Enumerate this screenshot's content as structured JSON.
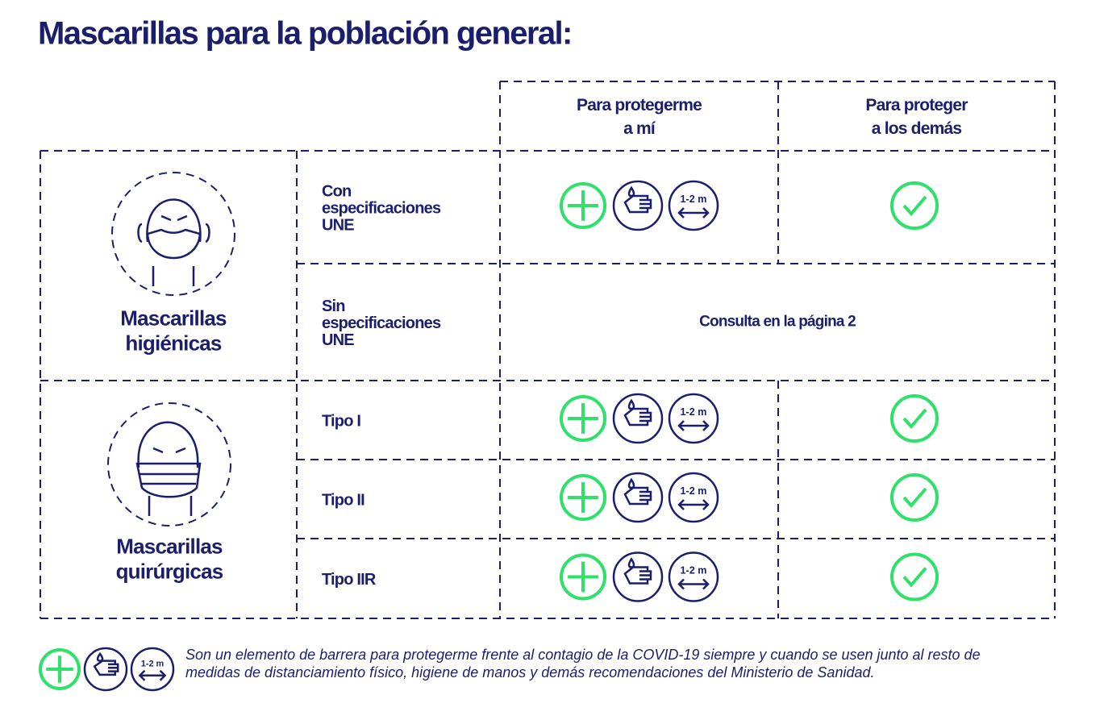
{
  "title": "Mascarillas para la población general:",
  "headers": [
    [
      "Para protegerme",
      "a mí"
    ],
    [
      "Para proteger",
      "a los demás"
    ]
  ],
  "groups": [
    {
      "name": [
        "Mascarillas",
        "higiénicas"
      ]
    },
    {
      "name": [
        "Mascarillas",
        "quirúrgicas"
      ]
    }
  ],
  "rows": [
    {
      "label": [
        "Con",
        "especificaciones",
        "UNE"
      ]
    },
    {
      "label": [
        "Sin",
        "especificaciones",
        "UNE"
      ],
      "note": "Consulta en la página 2"
    },
    {
      "label": [
        "Tipo I"
      ]
    },
    {
      "label": [
        "Tipo II"
      ]
    },
    {
      "label": [
        "Tipo IIR"
      ]
    }
  ],
  "distance_label": "1-2 m",
  "footnote": [
    "Son un elemento de barrera para protegerme frente al contagio de la COVID-19 siempre y cuando se usen junto al resto de",
    "medidas de distanciamiento físico, higiene de manos y demás recomendaciones del Ministerio de Sanidad."
  ]
}
